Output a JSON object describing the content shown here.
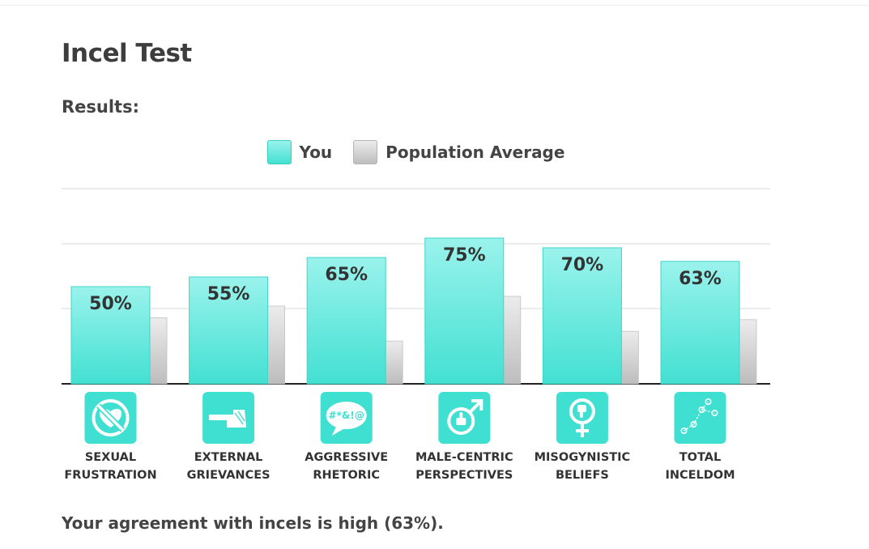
{
  "page": {
    "title": "Incel Test",
    "results_heading": "Results:",
    "summary": "Your agreement with incels is high (63%)."
  },
  "legend": {
    "you_label": "You",
    "avg_label": "Population Average"
  },
  "colors": {
    "you_top": "#9af3ec",
    "you_bottom": "#43e0d2",
    "avg_top": "#ececec",
    "avg_bottom": "#bdbdbd",
    "icon_bg": "#3fdfd1"
  },
  "chart_data": {
    "type": "bar",
    "categories": [
      [
        "SEXUAL",
        "FRUSTRATION"
      ],
      [
        "EXTERNAL",
        "GRIEVANCES"
      ],
      [
        "AGGRESSIVE",
        "RHETORIC"
      ],
      [
        "MALE-CENTRIC",
        "PERSPECTIVES"
      ],
      [
        "MISOGYNISTIC",
        "BELIEFS"
      ],
      [
        "TOTAL",
        "INCELDOM"
      ]
    ],
    "icons": [
      "no-heart-icon",
      "pointing-hand-icon",
      "swearing-bubble-icon",
      "male-thumbs-up-icon",
      "female-thumbs-down-icon",
      "scatter-trend-icon"
    ],
    "series": [
      {
        "name": "You",
        "values": [
          50,
          55,
          65,
          75,
          70,
          63
        ],
        "labels": [
          "50%",
          "55%",
          "65%",
          "75%",
          "70%",
          "63%"
        ]
      },
      {
        "name": "Population Average",
        "values": [
          34,
          40,
          22,
          45,
          27,
          33
        ]
      }
    ],
    "ylim": [
      0,
      100
    ],
    "grid": true
  }
}
